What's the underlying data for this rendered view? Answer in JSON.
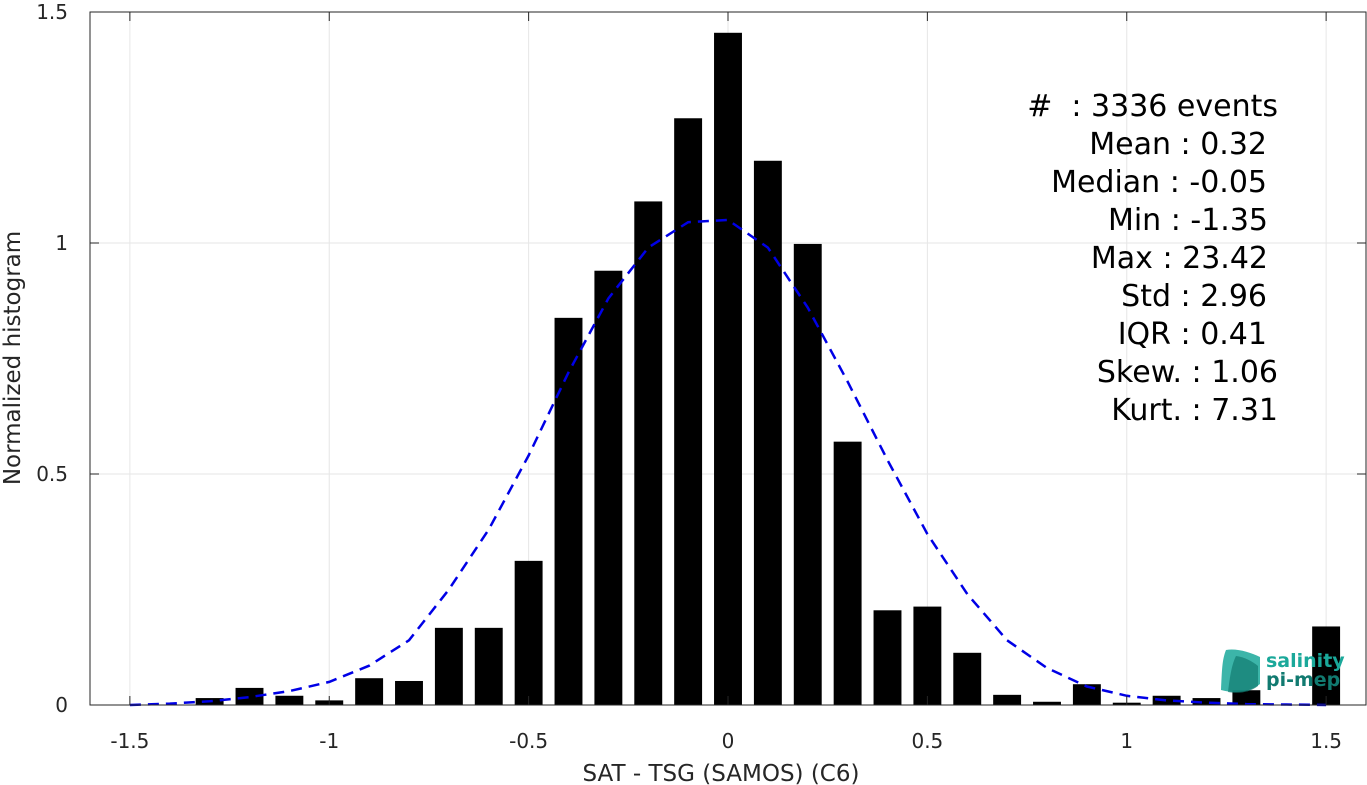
{
  "chart_data": {
    "type": "bar",
    "xlabel": "SAT - TSG (SAMOS) (C6)",
    "ylabel": "Normalized histogram",
    "xlim": [
      -1.6,
      1.6
    ],
    "ylim": [
      0,
      1.5
    ],
    "xticks": [
      -1.5,
      -1,
      -0.5,
      0,
      0.5,
      1,
      1.5
    ],
    "xtick_labels": [
      "-1.5",
      "-1",
      "-0.5",
      "0",
      "0.5",
      "1",
      "1.5"
    ],
    "yticks": [
      0,
      0.5,
      1,
      1.5
    ],
    "ytick_labels": [
      "0",
      "0.5",
      "1",
      "1.5"
    ],
    "grid": true,
    "bar_width": 0.07,
    "bar_color": "#000000",
    "bars": {
      "x": [
        -1.3,
        -1.2,
        -1.1,
        -1.0,
        -0.9,
        -0.8,
        -0.7,
        -0.6,
        -0.5,
        -0.4,
        -0.3,
        -0.2,
        -0.1,
        0.0,
        0.1,
        0.2,
        0.3,
        0.4,
        0.5,
        0.6,
        0.7,
        0.8,
        0.9,
        1.0,
        1.1,
        1.2,
        1.3,
        1.5
      ],
      "values": [
        0.015,
        0.037,
        0.02,
        0.01,
        0.058,
        0.052,
        0.167,
        0.167,
        0.312,
        0.838,
        0.94,
        1.09,
        1.27,
        1.455,
        1.178,
        0.998,
        0.57,
        0.205,
        0.213,
        0.113,
        0.022,
        0.007,
        0.045,
        0.005,
        0.02,
        0.015,
        0.032,
        0.17
      ]
    },
    "fit_curve": {
      "style": "dashed",
      "color": "#0000e6",
      "x": [
        -1.5,
        -1.4,
        -1.3,
        -1.2,
        -1.1,
        -1.0,
        -0.9,
        -0.8,
        -0.7,
        -0.6,
        -0.5,
        -0.4,
        -0.3,
        -0.2,
        -0.1,
        0.0,
        0.1,
        0.2,
        0.3,
        0.4,
        0.5,
        0.6,
        0.7,
        0.8,
        0.9,
        1.0,
        1.1,
        1.2,
        1.3,
        1.4,
        1.5
      ],
      "y": [
        0.0,
        0.003,
        0.008,
        0.017,
        0.03,
        0.05,
        0.085,
        0.14,
        0.25,
        0.38,
        0.54,
        0.72,
        0.88,
        0.99,
        1.045,
        1.05,
        0.99,
        0.86,
        0.7,
        0.53,
        0.37,
        0.24,
        0.14,
        0.08,
        0.04,
        0.02,
        0.01,
        0.005,
        0.002,
        0.001,
        0.0
      ]
    }
  },
  "stats": {
    "lines": [
      "#  : 3336 events",
      "Mean : 0.32",
      "Median : -0.05",
      "Min : -1.35",
      "Max : 23.42",
      "Std : 2.96",
      "IQR : 0.41",
      "Skew. : 1.06",
      "Kurt. : 7.31"
    ]
  },
  "logo": {
    "line1": "salinity",
    "line2": "pi-mep",
    "color_primary": "#1aa89a",
    "color_secondary": "#117a70"
  }
}
